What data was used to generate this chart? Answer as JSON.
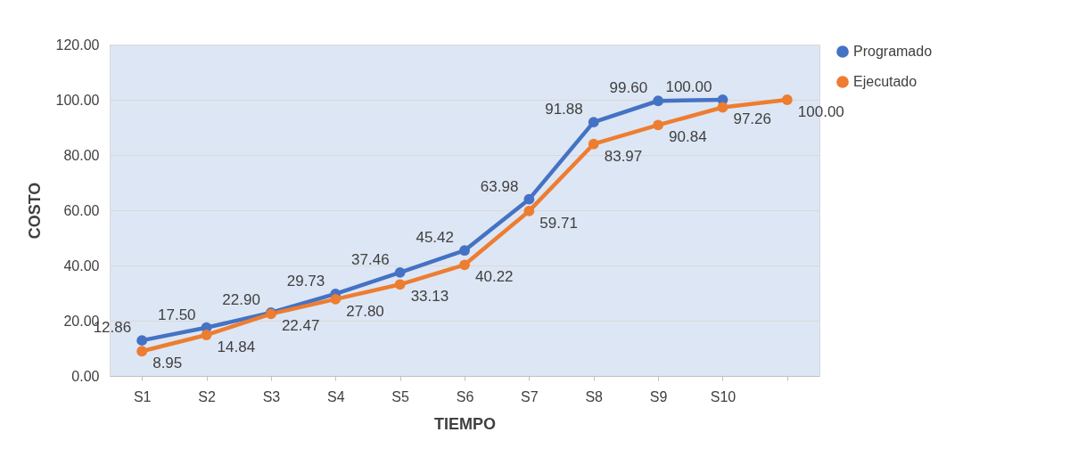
{
  "chart_data": {
    "type": "line",
    "xlabel": "TIEMPO",
    "ylabel": "COSTO",
    "categories": [
      "S1",
      "S2",
      "S3",
      "S4",
      "S5",
      "S6",
      "S7",
      "S8",
      "S9",
      "S10",
      null
    ],
    "series": [
      {
        "name": "Programado",
        "color": "#4472c4",
        "values": [
          12.86,
          17.5,
          22.9,
          29.73,
          37.46,
          45.42,
          63.98,
          91.88,
          99.6,
          100.0,
          null
        ],
        "value_labels": [
          "12.86",
          "17.50",
          "22.90",
          "29.73",
          "37.46",
          "45.42",
          "63.98",
          "91.88",
          "99.60",
          "100.00",
          null
        ]
      },
      {
        "name": "Ejecutado",
        "color": "#ed7d31",
        "values": [
          8.95,
          14.84,
          22.47,
          27.8,
          33.13,
          40.22,
          59.71,
          83.97,
          90.84,
          97.26,
          100.0
        ],
        "value_labels": [
          "8.95",
          "14.84",
          "22.47",
          "27.80",
          "33.13",
          "40.22",
          "59.71",
          "83.97",
          "90.84",
          "97.26",
          "100.00"
        ]
      }
    ],
    "ylim": [
      0,
      120
    ],
    "yticks": [
      {
        "value": 0,
        "label": "0.00"
      },
      {
        "value": 20,
        "label": "20.00"
      },
      {
        "value": 40,
        "label": "40.00"
      },
      {
        "value": 60,
        "label": "60.00"
      },
      {
        "value": 80,
        "label": "80.00"
      },
      {
        "value": 100,
        "label": "100.00"
      },
      {
        "value": 120,
        "label": "120.00"
      }
    ],
    "grid": "y",
    "legend": "right",
    "marker": "circle",
    "line_style": "solid"
  }
}
